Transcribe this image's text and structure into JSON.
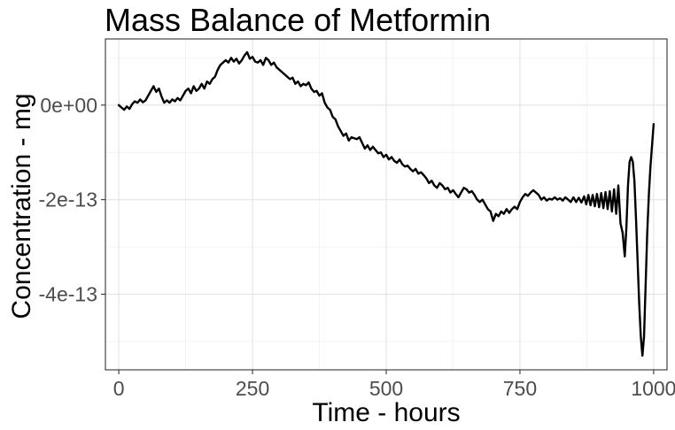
{
  "chart_data": {
    "type": "line",
    "title": "Mass Balance of Metformin",
    "xlabel": "Time - hours",
    "ylabel": "Concentration - mg",
    "xlim": [
      -25,
      1025
    ],
    "ylim": [
      -5.6e-13,
      1.4e-13
    ],
    "x_ticks": [
      0,
      250,
      500,
      750,
      1000
    ],
    "x_tick_labels": [
      "0",
      "250",
      "500",
      "750",
      "1000"
    ],
    "y_ticks": [
      0,
      -2e-13,
      -4e-13
    ],
    "y_tick_labels": [
      "0e+00",
      "-2e-13",
      "-4e-13"
    ],
    "grid": true,
    "series": [
      {
        "color": "#000000",
        "points": [
          [
            0,
            0.0
          ],
          [
            5,
            -5e-15
          ],
          [
            10,
            -1e-14
          ],
          [
            15,
            -3e-15
          ],
          [
            20,
            -8e-15
          ],
          [
            25,
            2e-15
          ],
          [
            30,
            8e-15
          ],
          [
            35,
            5e-15
          ],
          [
            40,
            1.2e-14
          ],
          [
            45,
            6e-15
          ],
          [
            50,
            1e-14
          ],
          [
            55,
            2e-14
          ],
          [
            60,
            3e-14
          ],
          [
            65,
            4e-14
          ],
          [
            70,
            2.8e-14
          ],
          [
            75,
            3.5e-14
          ],
          [
            80,
            1.8e-14
          ],
          [
            85,
            5e-15
          ],
          [
            90,
            1e-14
          ],
          [
            95,
            5e-15
          ],
          [
            100,
            1.2e-14
          ],
          [
            105,
            8e-15
          ],
          [
            110,
            1.5e-14
          ],
          [
            115,
            1e-14
          ],
          [
            120,
            2e-14
          ],
          [
            125,
            3e-14
          ],
          [
            130,
            3.5e-14
          ],
          [
            135,
            2.5e-14
          ],
          [
            140,
            4e-14
          ],
          [
            145,
            3e-14
          ],
          [
            150,
            3.5e-14
          ],
          [
            155,
            4.5e-14
          ],
          [
            160,
            3.5e-14
          ],
          [
            165,
            5e-14
          ],
          [
            170,
            4.5e-14
          ],
          [
            175,
            5.5e-14
          ],
          [
            180,
            6e-14
          ],
          [
            185,
            7.5e-14
          ],
          [
            190,
            8.5e-14
          ],
          [
            195,
            9e-14
          ],
          [
            200,
            9.5e-14
          ],
          [
            205,
            9e-14
          ],
          [
            210,
            1e-13
          ],
          [
            215,
            9.2e-14
          ],
          [
            220,
            9.8e-14
          ],
          [
            225,
            8.8e-14
          ],
          [
            230,
            9.5e-14
          ],
          [
            235,
            1.05e-13
          ],
          [
            240,
            1.12e-13
          ],
          [
            245,
            9.8e-14
          ],
          [
            250,
            1.02e-13
          ],
          [
            255,
            9.2e-14
          ],
          [
            260,
            9e-14
          ],
          [
            265,
            9.5e-14
          ],
          [
            270,
            8.5e-14
          ],
          [
            275,
            1e-13
          ],
          [
            280,
            9.5e-14
          ],
          [
            285,
            8.5e-14
          ],
          [
            290,
            9e-14
          ],
          [
            295,
            8e-14
          ],
          [
            300,
            7.5e-14
          ],
          [
            305,
            7e-14
          ],
          [
            310,
            6.5e-14
          ],
          [
            315,
            6e-14
          ],
          [
            320,
            5.5e-14
          ],
          [
            325,
            5.8e-14
          ],
          [
            330,
            4.5e-14
          ],
          [
            335,
            5e-14
          ],
          [
            340,
            4e-14
          ],
          [
            345,
            4.5e-14
          ],
          [
            350,
            4.2e-14
          ],
          [
            355,
            4.8e-14
          ],
          [
            360,
            3.5e-14
          ],
          [
            365,
            2.8e-14
          ],
          [
            370,
            3e-14
          ],
          [
            375,
            2e-14
          ],
          [
            380,
            2.5e-14
          ],
          [
            385,
            5e-15
          ],
          [
            390,
            -5e-15
          ],
          [
            395,
            -1e-14
          ],
          [
            400,
            -2.5e-14
          ],
          [
            405,
            -3e-14
          ],
          [
            410,
            -4.5e-14
          ],
          [
            415,
            -5.5e-14
          ],
          [
            420,
            -6.5e-14
          ],
          [
            425,
            -6e-14
          ],
          [
            430,
            -7.5e-14
          ],
          [
            435,
            -6.8e-14
          ],
          [
            440,
            -7e-14
          ],
          [
            445,
            -7.2e-14
          ],
          [
            450,
            -6.8e-14
          ],
          [
            455,
            -8e-14
          ],
          [
            460,
            -9.2e-14
          ],
          [
            465,
            -8.5e-14
          ],
          [
            470,
            -9.5e-14
          ],
          [
            475,
            -8.8e-14
          ],
          [
            480,
            -9.5e-14
          ],
          [
            485,
            -1.02e-13
          ],
          [
            490,
            -1e-13
          ],
          [
            495,
            -1.1e-13
          ],
          [
            500,
            -1.05e-13
          ],
          [
            505,
            -1.15e-13
          ],
          [
            510,
            -1.1e-13
          ],
          [
            515,
            -1.18e-13
          ],
          [
            520,
            -1.22e-13
          ],
          [
            525,
            -1.15e-13
          ],
          [
            530,
            -1.25e-13
          ],
          [
            535,
            -1.3e-13
          ],
          [
            540,
            -1.28e-13
          ],
          [
            545,
            -1.35e-13
          ],
          [
            550,
            -1.4e-13
          ],
          [
            555,
            -1.35e-13
          ],
          [
            560,
            -1.45e-13
          ],
          [
            565,
            -1.42e-13
          ],
          [
            570,
            -1.48e-13
          ],
          [
            575,
            -1.55e-13
          ],
          [
            580,
            -1.65e-13
          ],
          [
            585,
            -1.6e-13
          ],
          [
            590,
            -1.7e-13
          ],
          [
            595,
            -1.75e-13
          ],
          [
            600,
            -1.65e-13
          ],
          [
            605,
            -1.7e-13
          ],
          [
            610,
            -1.78e-13
          ],
          [
            615,
            -1.75e-13
          ],
          [
            620,
            -1.85e-13
          ],
          [
            625,
            -1.8e-13
          ],
          [
            630,
            -1.88e-13
          ],
          [
            635,
            -1.95e-13
          ],
          [
            640,
            -1.85e-13
          ],
          [
            645,
            -1.75e-13
          ],
          [
            650,
            -1.78e-13
          ],
          [
            655,
            -1.85e-13
          ],
          [
            660,
            -1.82e-13
          ],
          [
            665,
            -1.9e-13
          ],
          [
            670,
            -2e-13
          ],
          [
            675,
            -2.05e-13
          ],
          [
            680,
            -2e-13
          ],
          [
            685,
            -2.1e-13
          ],
          [
            690,
            -2.2e-13
          ],
          [
            695,
            -2.25e-13
          ],
          [
            700,
            -2.45e-13
          ],
          [
            705,
            -2.3e-13
          ],
          [
            710,
            -2.35e-13
          ],
          [
            715,
            -2.25e-13
          ],
          [
            720,
            -2.3e-13
          ],
          [
            725,
            -2.2e-13
          ],
          [
            730,
            -2.28e-13
          ],
          [
            735,
            -2.2e-13
          ],
          [
            740,
            -2.15e-13
          ],
          [
            745,
            -2.2e-13
          ],
          [
            750,
            -2.05e-13
          ],
          [
            755,
            -1.95e-13
          ],
          [
            760,
            -1.88e-13
          ],
          [
            765,
            -1.92e-13
          ],
          [
            770,
            -1.85e-13
          ],
          [
            775,
            -1.8e-13
          ],
          [
            780,
            -1.85e-13
          ],
          [
            785,
            -1.9e-13
          ],
          [
            790,
            -2e-13
          ],
          [
            795,
            -1.95e-13
          ],
          [
            800,
            -2.02e-13
          ],
          [
            805,
            -1.98e-13
          ],
          [
            810,
            -2e-13
          ],
          [
            815,
            -1.95e-13
          ],
          [
            820,
            -2e-13
          ],
          [
            825,
            -1.97e-13
          ],
          [
            830,
            -2.02e-13
          ],
          [
            835,
            -1.95e-13
          ],
          [
            840,
            -2e-13
          ],
          [
            845,
            -2.05e-13
          ],
          [
            850,
            -1.95e-13
          ],
          [
            855,
            -2.05e-13
          ],
          [
            860,
            -1.96e-13
          ],
          [
            865,
            -2.06e-13
          ],
          [
            870,
            -1.93e-13
          ],
          [
            874,
            -2.1e-13
          ],
          [
            878,
            -1.9e-13
          ],
          [
            882,
            -2.12e-13
          ],
          [
            886,
            -1.9e-13
          ],
          [
            890,
            -2.14e-13
          ],
          [
            894,
            -1.88e-13
          ],
          [
            898,
            -2.16e-13
          ],
          [
            902,
            -1.86e-13
          ],
          [
            906,
            -2.18e-13
          ],
          [
            910,
            -1.84e-13
          ],
          [
            914,
            -2.2e-13
          ],
          [
            918,
            -1.82e-13
          ],
          [
            922,
            -2.25e-13
          ],
          [
            926,
            -1.78e-13
          ],
          [
            930,
            -2.3e-13
          ],
          [
            934,
            -1.7e-13
          ],
          [
            938,
            -2.5e-13
          ],
          [
            942,
            -2.7e-13
          ],
          [
            946,
            -3.2e-13
          ],
          [
            949,
            -2.6e-13
          ],
          [
            952,
            -1.7e-13
          ],
          [
            955,
            -1.2e-13
          ],
          [
            958,
            -1.1e-13
          ],
          [
            961,
            -1.2e-13
          ],
          [
            964,
            -1.6e-13
          ],
          [
            967,
            -2.4e-13
          ],
          [
            970,
            -3.3e-13
          ],
          [
            973,
            -4.2e-13
          ],
          [
            976,
            -4.9e-13
          ],
          [
            979,
            -5.3e-13
          ],
          [
            982,
            -4.9e-13
          ],
          [
            985,
            -3.8e-13
          ],
          [
            988,
            -2.7e-13
          ],
          [
            991,
            -1.9e-13
          ],
          [
            994,
            -1.3e-13
          ],
          [
            997,
            -8.5e-14
          ],
          [
            1000,
            -4e-14
          ]
        ]
      }
    ]
  }
}
